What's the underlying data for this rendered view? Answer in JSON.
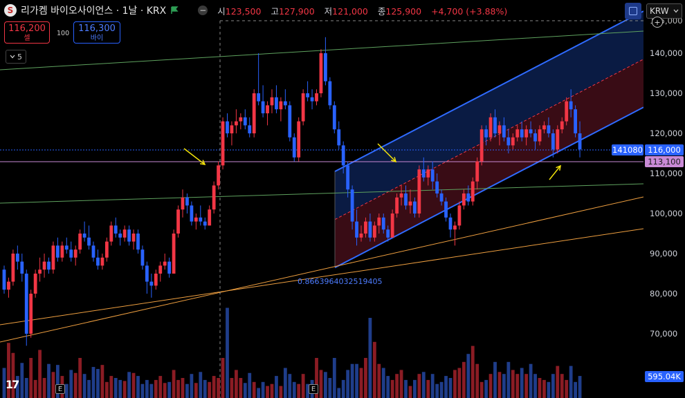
{
  "header": {
    "logo_letter": "S",
    "symbol": "리가켐 바이오사이언스 · 1날 · KRX",
    "ohlc": [
      {
        "label": "시",
        "value": "123,500"
      },
      {
        "label": "고",
        "value": "127,900"
      },
      {
        "label": "저",
        "value": "121,000"
      },
      {
        "label": "종",
        "value": "125,900"
      }
    ],
    "change": "+4,700 (+3.88%)"
  },
  "trade": {
    "sell_price": "116,200",
    "sell_label": "셀",
    "spread": "100",
    "buy_price": "116,300",
    "buy_label": "바이"
  },
  "indicator_toggle": "5",
  "currency": "KRW",
  "price_axis": {
    "ticks": [
      "140,000",
      "130,000",
      "120,000",
      "110,000",
      "100,000",
      "90,000",
      "80,000",
      "70,000"
    ],
    "cut_top": "145,000"
  },
  "labels": {
    "crosshair_left": "141080",
    "price_current": "116,000",
    "price_line": "113,100",
    "volume": "595.04K",
    "fib_ratio": "0.8663964032519405",
    "event_marker": "E",
    "watermark": "17"
  },
  "colors": {
    "up": "#f23645",
    "down": "#2962ff",
    "channel_upper_fill": "#0b1e4a",
    "channel_lower_fill": "#3f0d17",
    "trend_green": "#5fa35f",
    "trend_orange": "#f0a040",
    "price_line": "#c98ad6",
    "arrow": "#f5e50a"
  },
  "chart_data": {
    "type": "candlestick",
    "y_range": [
      60000,
      148000
    ],
    "candles": [
      [
        86000,
        87000,
        80000,
        81000
      ],
      [
        81000,
        84000,
        79000,
        83000
      ],
      [
        83000,
        91000,
        82000,
        90000
      ],
      [
        90000,
        92000,
        86000,
        88000
      ],
      [
        88000,
        90000,
        83000,
        85000
      ],
      [
        85000,
        86000,
        67000,
        70000
      ],
      [
        70000,
        81000,
        69000,
        80000
      ],
      [
        80000,
        86000,
        79000,
        85000
      ],
      [
        85000,
        89000,
        83000,
        86000
      ],
      [
        86000,
        90000,
        84000,
        88000
      ],
      [
        88000,
        89000,
        85000,
        86000
      ],
      [
        86000,
        93000,
        85000,
        92000
      ],
      [
        92000,
        94000,
        88000,
        89000
      ],
      [
        89000,
        93000,
        88000,
        92000
      ],
      [
        92000,
        94000,
        90000,
        91000
      ],
      [
        91000,
        93000,
        88000,
        89000
      ],
      [
        89000,
        92000,
        87000,
        91000
      ],
      [
        91000,
        96000,
        90000,
        95000
      ],
      [
        95000,
        98000,
        93000,
        94000
      ],
      [
        94000,
        97000,
        91000,
        92000
      ],
      [
        92000,
        93000,
        88000,
        89000
      ],
      [
        89000,
        91000,
        86000,
        87000
      ],
      [
        87000,
        90000,
        86000,
        89000
      ],
      [
        89000,
        94000,
        88000,
        93000
      ],
      [
        93000,
        98000,
        92000,
        97000
      ],
      [
        97000,
        99000,
        94000,
        95000
      ],
      [
        95000,
        96000,
        92000,
        94000
      ],
      [
        94000,
        97000,
        93000,
        96000
      ],
      [
        96000,
        97000,
        92000,
        93000
      ],
      [
        93000,
        96000,
        91000,
        95000
      ],
      [
        95000,
        96000,
        90000,
        91000
      ],
      [
        91000,
        92000,
        86000,
        87000
      ],
      [
        87000,
        88000,
        80000,
        83000
      ],
      [
        83000,
        85000,
        79000,
        82000
      ],
      [
        82000,
        86000,
        81000,
        85000
      ],
      [
        85000,
        88000,
        83000,
        87000
      ],
      [
        87000,
        90000,
        86000,
        88000
      ],
      [
        88000,
        89000,
        84000,
        85000
      ],
      [
        85000,
        96000,
        85000,
        95000
      ],
      [
        95000,
        102000,
        94000,
        101000
      ],
      [
        101000,
        106000,
        99000,
        104000
      ],
      [
        104000,
        105000,
        100000,
        102000
      ],
      [
        102000,
        103000,
        97000,
        98000
      ],
      [
        98000,
        100000,
        96000,
        99000
      ],
      [
        99000,
        102000,
        97000,
        98000
      ],
      [
        98000,
        99000,
        96000,
        97000
      ],
      [
        97000,
        102000,
        97000,
        101000
      ],
      [
        101000,
        108000,
        100000,
        107000
      ],
      [
        107000,
        113000,
        106000,
        112000
      ],
      [
        112000,
        124000,
        111000,
        123000
      ],
      [
        123000,
        125000,
        119000,
        120000
      ],
      [
        120000,
        123000,
        117000,
        122000
      ],
      [
        122000,
        126000,
        120000,
        123000
      ],
      [
        123000,
        125000,
        121000,
        124000
      ],
      [
        124000,
        126000,
        121000,
        122000
      ],
      [
        122000,
        124000,
        119000,
        120000
      ],
      [
        120000,
        131000,
        119000,
        130000
      ],
      [
        130000,
        140000,
        127000,
        128000
      ],
      [
        128000,
        132000,
        124000,
        125000
      ],
      [
        125000,
        128000,
        122000,
        127000
      ],
      [
        127000,
        131000,
        125000,
        129000
      ],
      [
        129000,
        132000,
        125000,
        126000
      ],
      [
        126000,
        129000,
        123000,
        128000
      ],
      [
        128000,
        131000,
        126000,
        127000
      ],
      [
        127000,
        128000,
        118000,
        119000
      ],
      [
        119000,
        120000,
        113000,
        114000
      ],
      [
        114000,
        124000,
        113000,
        123000
      ],
      [
        123000,
        131000,
        122000,
        130000
      ],
      [
        130000,
        133000,
        128000,
        129000
      ],
      [
        129000,
        131000,
        126000,
        128000
      ],
      [
        128000,
        131000,
        127000,
        130000
      ],
      [
        130000,
        141000,
        129000,
        140000
      ],
      [
        140000,
        144000,
        132000,
        133000
      ],
      [
        133000,
        134000,
        126000,
        127000
      ],
      [
        127000,
        128000,
        120000,
        121000
      ],
      [
        121000,
        123000,
        116000,
        117000
      ],
      [
        117000,
        118000,
        110000,
        112000
      ],
      [
        112000,
        113000,
        104000,
        106000
      ],
      [
        106000,
        107000,
        96000,
        98000
      ],
      [
        98000,
        101000,
        92000,
        94000
      ],
      [
        94000,
        97000,
        93000,
        95000
      ],
      [
        95000,
        99000,
        94000,
        98000
      ],
      [
        98000,
        100000,
        93000,
        94000
      ],
      [
        94000,
        98000,
        93000,
        97000
      ],
      [
        97000,
        100000,
        95000,
        99000
      ],
      [
        99000,
        100000,
        95000,
        96000
      ],
      [
        96000,
        97000,
        93000,
        94000
      ],
      [
        94000,
        101000,
        94000,
        100000
      ],
      [
        100000,
        105000,
        99000,
        104000
      ],
      [
        104000,
        107000,
        102000,
        105000
      ],
      [
        105000,
        107000,
        101000,
        102000
      ],
      [
        102000,
        106000,
        100000,
        103000
      ],
      [
        103000,
        104000,
        99000,
        100000
      ],
      [
        100000,
        112000,
        99000,
        111000
      ],
      [
        111000,
        114000,
        108000,
        109000
      ],
      [
        109000,
        112000,
        107000,
        111000
      ],
      [
        111000,
        113000,
        106000,
        108000
      ],
      [
        108000,
        110000,
        104000,
        105000
      ],
      [
        105000,
        106000,
        102000,
        103000
      ],
      [
        103000,
        104000,
        98000,
        99000
      ],
      [
        99000,
        100000,
        94000,
        96000
      ],
      [
        96000,
        98000,
        92000,
        97000
      ],
      [
        97000,
        103000,
        96000,
        102000
      ],
      [
        102000,
        106000,
        101000,
        105000
      ],
      [
        105000,
        107000,
        102000,
        103000
      ],
      [
        103000,
        109000,
        102000,
        108000
      ],
      [
        108000,
        114000,
        106000,
        113000
      ],
      [
        113000,
        122000,
        112000,
        121000
      ],
      [
        121000,
        122000,
        117000,
        119000
      ],
      [
        119000,
        125000,
        118000,
        124000
      ],
      [
        124000,
        126000,
        119000,
        120000
      ],
      [
        120000,
        123000,
        117000,
        122000
      ],
      [
        122000,
        124000,
        118000,
        119000
      ],
      [
        119000,
        121000,
        115000,
        117000
      ],
      [
        117000,
        120000,
        116000,
        119000
      ],
      [
        119000,
        122000,
        118000,
        121000
      ],
      [
        121000,
        123000,
        118000,
        119000
      ],
      [
        119000,
        122000,
        117000,
        121000
      ],
      [
        121000,
        123000,
        119000,
        120000
      ],
      [
        120000,
        121000,
        116000,
        118000
      ],
      [
        118000,
        122000,
        117000,
        121000
      ],
      [
        121000,
        123000,
        120000,
        122000
      ],
      [
        122000,
        124000,
        119000,
        120000
      ],
      [
        120000,
        121000,
        114000,
        116000
      ],
      [
        116000,
        122000,
        115000,
        121000
      ],
      [
        121000,
        124000,
        120000,
        123000
      ],
      [
        123000,
        129000,
        122000,
        128000
      ],
      [
        128000,
        131000,
        124000,
        126000
      ],
      [
        126000,
        127000,
        119000,
        120000
      ],
      [
        120000,
        123000,
        114000,
        116000
      ]
    ],
    "volumes": [
      30,
      55,
      45,
      22,
      35,
      20,
      40,
      18,
      48,
      20,
      34,
      26,
      33,
      22,
      14,
      28,
      25,
      40,
      24,
      18,
      31,
      29,
      33,
      16,
      22,
      20,
      18,
      17,
      26,
      25,
      22,
      14,
      18,
      14,
      18,
      22,
      15,
      16,
      28,
      18,
      20,
      14,
      24,
      15,
      26,
      18,
      16,
      22,
      20,
      40,
      90,
      20,
      28,
      20,
      15,
      25,
      16,
      10,
      16,
      12,
      14,
      22,
      12,
      30,
      24,
      16,
      14,
      24,
      14,
      18,
      40,
      28,
      26,
      20,
      40,
      10,
      18,
      28,
      34,
      34,
      30,
      40,
      80,
      56,
      34,
      30,
      22,
      18,
      24,
      28,
      18,
      12,
      18,
      24,
      26,
      18,
      24,
      14,
      16,
      22,
      20,
      28,
      30,
      36,
      44,
      52,
      34,
      16,
      18,
      24,
      36,
      26,
      24,
      36,
      28,
      24,
      30,
      24,
      34,
      24,
      20,
      18,
      16,
      24,
      32,
      24,
      18,
      32,
      16,
      22
    ],
    "volume_max": 100
  }
}
